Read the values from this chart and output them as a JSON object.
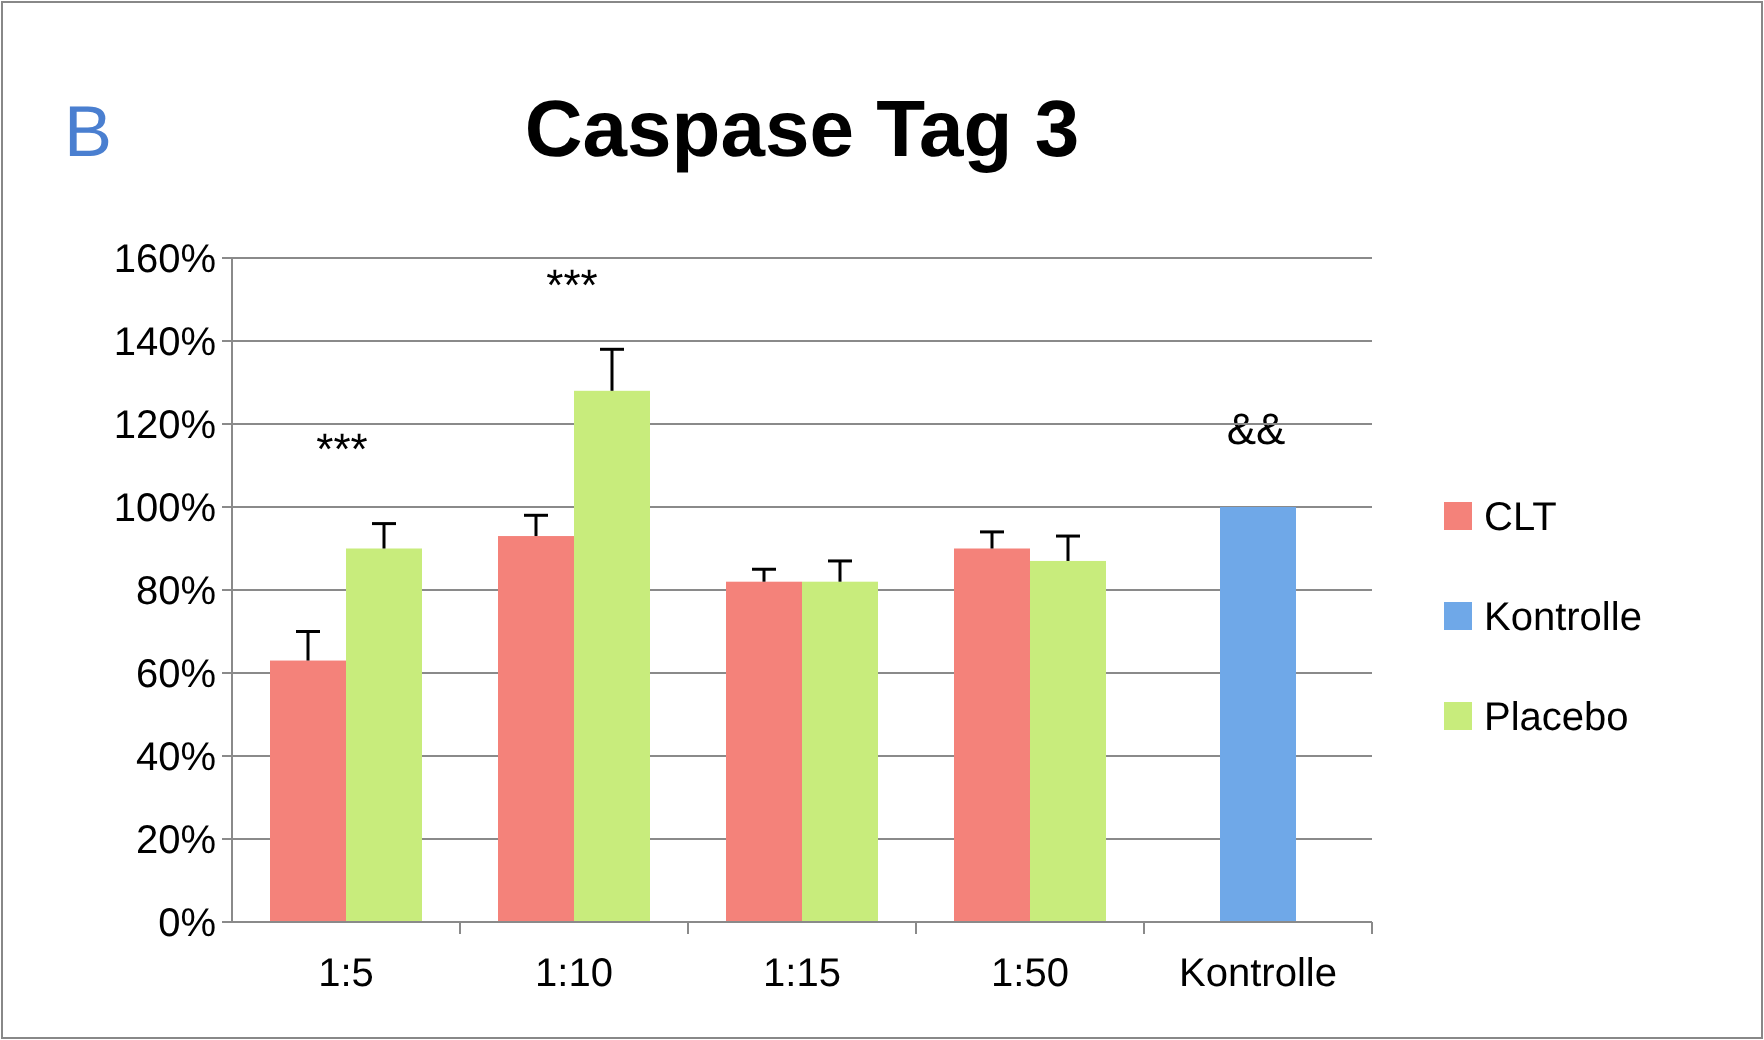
{
  "chart_data": {
    "type": "bar",
    "title": "Caspase Tag 3",
    "categories": [
      "1:5",
      "1:10",
      "1:15",
      "1:50",
      "Kontrolle"
    ],
    "series": [
      {
        "name": "CLT",
        "color": "#f4827a",
        "values": [
          63,
          93,
          82,
          90,
          null
        ],
        "errors": [
          [
            63,
            70
          ],
          [
            93,
            98
          ],
          [
            82,
            85
          ],
          [
            90,
            94
          ],
          null
        ]
      },
      {
        "name": "Kontrolle",
        "color": "#6fa8e8",
        "values": [
          null,
          null,
          null,
          null,
          100
        ]
      },
      {
        "name": "Placebo",
        "color": "#c8ec7c",
        "values": [
          90,
          128,
          82,
          87,
          null
        ],
        "errors": [
          [
            90,
            96
          ],
          [
            128,
            138
          ],
          [
            82,
            87
          ],
          [
            87,
            93
          ],
          null
        ]
      }
    ],
    "ylim": [
      0,
      160
    ],
    "yticks": [
      {
        "value": 0,
        "label": "0%"
      },
      {
        "value": 20,
        "label": "20%"
      },
      {
        "value": 40,
        "label": "40%"
      },
      {
        "value": 60,
        "label": "60%"
      },
      {
        "value": 80,
        "label": "80%"
      },
      {
        "value": 100,
        "label": "100%"
      },
      {
        "value": 120,
        "label": "120%"
      },
      {
        "value": 140,
        "label": "140%"
      },
      {
        "value": 160,
        "label": "160%"
      }
    ],
    "grid": "y",
    "legend": "right",
    "annotations": [
      "B",
      "***",
      "***",
      "&&"
    ]
  }
}
